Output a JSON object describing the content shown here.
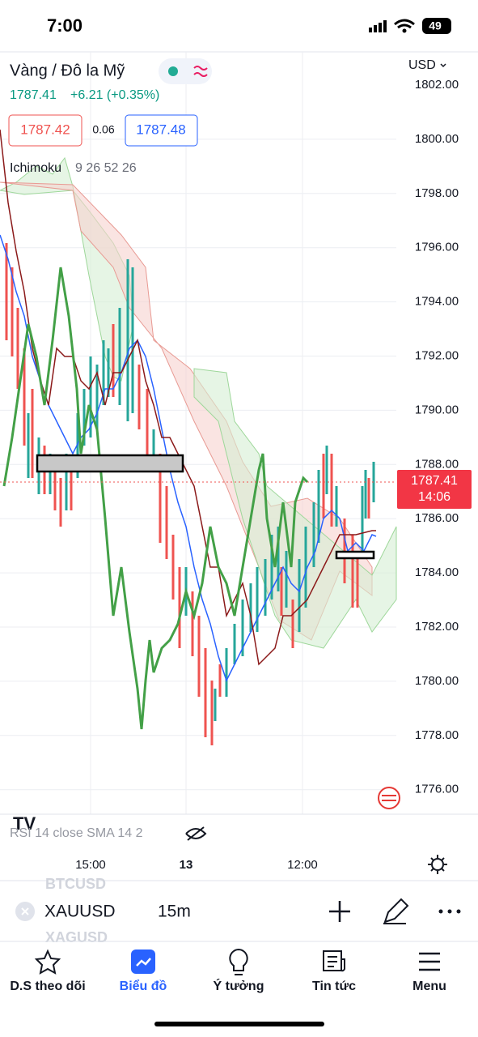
{
  "status_bar": {
    "time": "7:00",
    "battery": "49"
  },
  "header": {
    "title": "Vàng / Đô la Mỹ",
    "currency": "USD",
    "price": "1787.41",
    "change": "+6.21 (+0.35%)",
    "bid": "1787.42",
    "spread": "0.06",
    "ask": "1787.48",
    "indicator": "Ichimoku",
    "indicator_params": "9 26 52 26"
  },
  "price_axis": [
    "1802.00",
    "1800.00",
    "1798.00",
    "1796.00",
    "1794.00",
    "1792.00",
    "1790.00",
    "1788.00",
    "1786.00",
    "1784.00",
    "1782.00",
    "1780.00",
    "1778.00",
    "1776.00"
  ],
  "current_price": {
    "price": "1787.41",
    "countdown": "14:06"
  },
  "rsi_label": "RSI 14 close SMA 14 2",
  "time_axis": [
    "15:00",
    "13",
    "12:00"
  ],
  "symbol_bar": {
    "previous": "BTCUSD",
    "symbol": "XAUUSD",
    "interval": "15m",
    "next": "XAGUSD"
  },
  "nav": [
    "D.S theo dõi",
    "Biểu đồ",
    "Ý tưởng",
    "Tin tức",
    "Menu"
  ]
}
